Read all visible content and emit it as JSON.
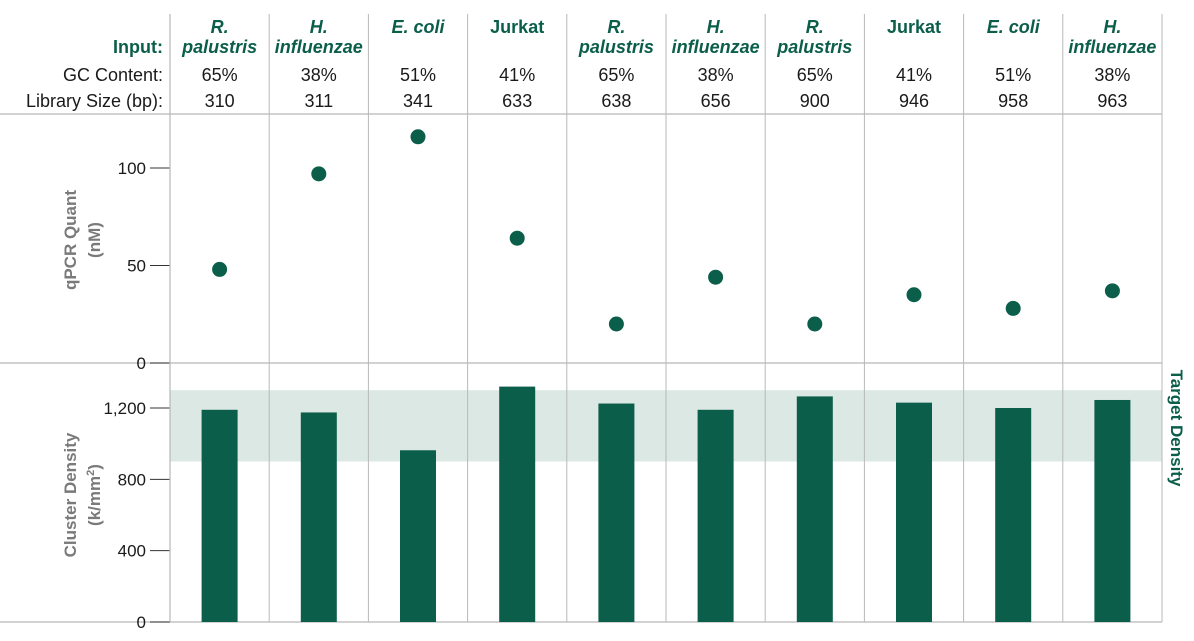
{
  "header": {
    "input_label": "Input:",
    "gc_label": "GC Content:",
    "size_label": "Library Size (bp):"
  },
  "columns": [
    {
      "line1": "R.",
      "line2": "palustris",
      "italic": true,
      "gc": "65%",
      "size": "310"
    },
    {
      "line1": "H.",
      "line2": "influenzae",
      "italic": true,
      "gc": "38%",
      "size": "311"
    },
    {
      "line1": "E. coli",
      "line2": "",
      "italic": true,
      "gc": "51%",
      "size": "341"
    },
    {
      "line1": "Jurkat",
      "line2": "",
      "italic": false,
      "gc": "41%",
      "size": "633"
    },
    {
      "line1": "R.",
      "line2": "palustris",
      "italic": true,
      "gc": "65%",
      "size": "638"
    },
    {
      "line1": "H.",
      "line2": "influenzae",
      "italic": true,
      "gc": "38%",
      "size": "656"
    },
    {
      "line1": "R.",
      "line2": "palustris",
      "italic": true,
      "gc": "65%",
      "size": "900"
    },
    {
      "line1": "Jurkat",
      "line2": "",
      "italic": false,
      "gc": "41%",
      "size": "946"
    },
    {
      "line1": "E. coli",
      "line2": "",
      "italic": true,
      "gc": "51%",
      "size": "958"
    },
    {
      "line1": "H.",
      "line2": "influenzae",
      "italic": true,
      "gc": "38%",
      "size": "963"
    }
  ],
  "colors": {
    "accent": "#0b5e4a",
    "target_band": "#dce8e3",
    "grid": "#b8b8b8",
    "axis_label": "#7a7a7a"
  },
  "chart_data": [
    {
      "type": "scatter",
      "categories": [
        "310",
        "311",
        "341",
        "633",
        "638",
        "656",
        "900",
        "946",
        "958",
        "963"
      ],
      "values": [
        48,
        97,
        116,
        64,
        20,
        44,
        20,
        35,
        28,
        37
      ],
      "ylabel_line1": "qPCR Quant",
      "ylabel_line2": "(nM)",
      "yticks": [
        "0",
        "50",
        "100"
      ],
      "ylim": [
        0,
        125
      ]
    },
    {
      "type": "bar",
      "categories": [
        "310",
        "311",
        "341",
        "633",
        "638",
        "656",
        "900",
        "946",
        "958",
        "963"
      ],
      "values": [
        1190,
        1175,
        963,
        1320,
        1225,
        1190,
        1265,
        1230,
        1200,
        1245
      ],
      "ylabel_line1": "Cluster Density",
      "ylabel_line2": "(k/mm",
      "ylabel_sup": "2",
      "ylabel_close": ")",
      "yticks": [
        "0",
        "400",
        "800",
        "1,200"
      ],
      "ylim": [
        0,
        1400
      ],
      "target_band": [
        900,
        1300
      ],
      "target_label": "Target Density"
    }
  ]
}
